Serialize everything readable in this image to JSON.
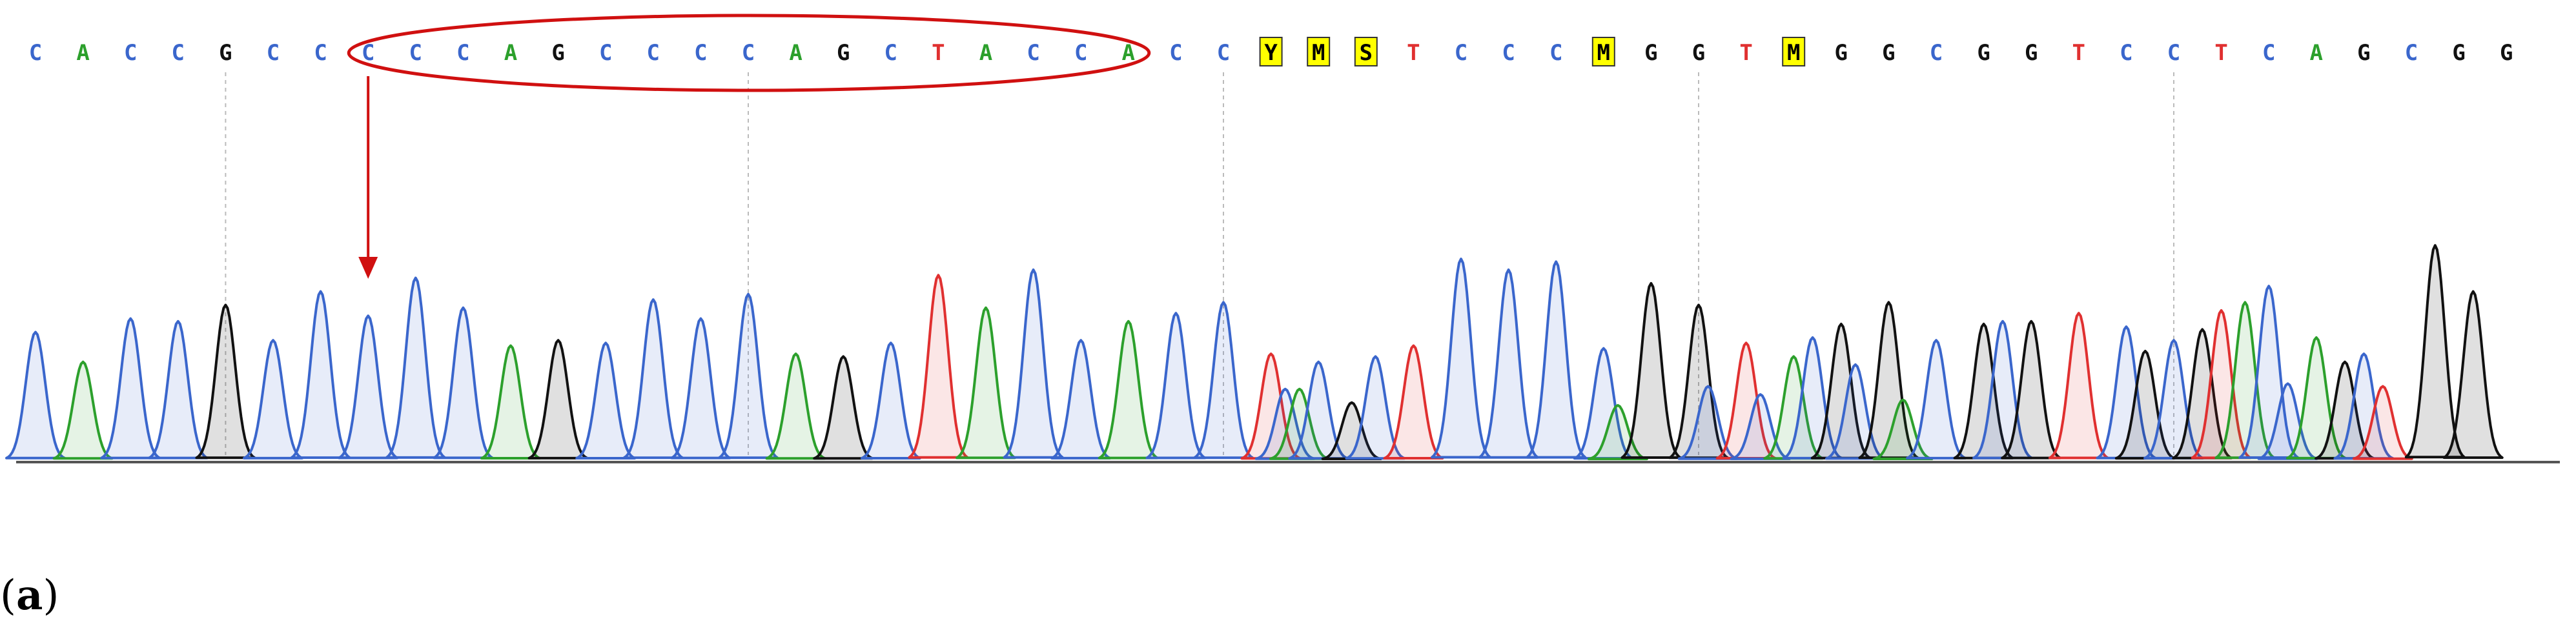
{
  "colors": {
    "A": "#2ca02c",
    "C": "#3a66cc",
    "G": "#111111",
    "T": "#e03030",
    "N": "#000000",
    "highlight": "#ffff00",
    "annotation": "#d01010",
    "fill_A": "rgba(44,160,44,0.12)",
    "fill_C": "rgba(58,102,204,0.12)",
    "fill_G": "rgba(0,0,0,0.12)",
    "fill_T": "rgba(224,48,48,0.12)"
  },
  "chart_data": {
    "type": "line",
    "subtype": "sanger-chromatogram",
    "title": "",
    "xlabel": "",
    "ylabel": "",
    "sequence": [
      "C",
      "A",
      "C",
      "C",
      "G",
      "C",
      "C",
      "C",
      "C",
      "C",
      "A",
      "G",
      "C",
      "C",
      "C",
      "C",
      "A",
      "G",
      "C",
      "T",
      "A",
      "C",
      "C",
      "A",
      "C",
      "C",
      "Y",
      "M",
      "S",
      "T",
      "C",
      "C",
      "C",
      "M",
      "G",
      "G",
      "T",
      "M",
      "G",
      "G",
      "C",
      "G",
      "G",
      "T",
      "C",
      "C",
      "T",
      "C",
      "A",
      "G",
      "C",
      "G",
      "G"
    ],
    "highlighted_bases": [
      26,
      27,
      28,
      33,
      37
    ],
    "circled_range": [
      7,
      23
    ],
    "arrow_base_index": 7,
    "guide_lines_at_base": [
      4,
      15,
      25,
      35,
      45
    ],
    "peaks": [
      {
        "base": "C",
        "x": 1,
        "h": 0.47
      },
      {
        "base": "A",
        "x": 2,
        "h": 0.36
      },
      {
        "base": "C",
        "x": 3,
        "h": 0.52
      },
      {
        "base": "C",
        "x": 4,
        "h": 0.51
      },
      {
        "base": "G",
        "x": 5,
        "h": 0.57
      },
      {
        "base": "C",
        "x": 6,
        "h": 0.44
      },
      {
        "base": "C",
        "x": 7,
        "h": 0.62
      },
      {
        "base": "C",
        "x": 8,
        "h": 0.53
      },
      {
        "base": "C",
        "x": 9,
        "h": 0.67
      },
      {
        "base": "C",
        "x": 10,
        "h": 0.56
      },
      {
        "base": "A",
        "x": 11,
        "h": 0.42
      },
      {
        "base": "G",
        "x": 12,
        "h": 0.44
      },
      {
        "base": "C",
        "x": 13,
        "h": 0.43
      },
      {
        "base": "C",
        "x": 14,
        "h": 0.59
      },
      {
        "base": "C",
        "x": 15,
        "h": 0.52
      },
      {
        "base": "C",
        "x": 16,
        "h": 0.61
      },
      {
        "base": "A",
        "x": 17,
        "h": 0.39
      },
      {
        "base": "G",
        "x": 18,
        "h": 0.38
      },
      {
        "base": "C",
        "x": 19,
        "h": 0.43
      },
      {
        "base": "T",
        "x": 20,
        "h": 0.68
      },
      {
        "base": "A",
        "x": 21,
        "h": 0.56
      },
      {
        "base": "C",
        "x": 22,
        "h": 0.7
      },
      {
        "base": "C",
        "x": 23,
        "h": 0.44
      },
      {
        "base": "A",
        "x": 24,
        "h": 0.51
      },
      {
        "base": "C",
        "x": 25,
        "h": 0.54
      },
      {
        "base": "C",
        "x": 26,
        "h": 0.58
      },
      {
        "base": "T",
        "x": 27,
        "h": 0.39
      },
      {
        "base": "C",
        "x": 27.3,
        "h": 0.26
      },
      {
        "base": "A",
        "x": 27.6,
        "h": 0.26
      },
      {
        "base": "C",
        "x": 28,
        "h": 0.36
      },
      {
        "base": "G",
        "x": 28.7,
        "h": 0.21
      },
      {
        "base": "C",
        "x": 29.2,
        "h": 0.38
      },
      {
        "base": "T",
        "x": 30,
        "h": 0.42
      },
      {
        "base": "C",
        "x": 31,
        "h": 0.74
      },
      {
        "base": "C",
        "x": 32,
        "h": 0.7
      },
      {
        "base": "C",
        "x": 33,
        "h": 0.73
      },
      {
        "base": "C",
        "x": 34,
        "h": 0.41
      },
      {
        "base": "A",
        "x": 34.3,
        "h": 0.2
      },
      {
        "base": "G",
        "x": 35,
        "h": 0.65
      },
      {
        "base": "G",
        "x": 36,
        "h": 0.57
      },
      {
        "base": "C",
        "x": 36.2,
        "h": 0.27
      },
      {
        "base": "T",
        "x": 37,
        "h": 0.43
      },
      {
        "base": "C",
        "x": 37.3,
        "h": 0.24
      },
      {
        "base": "A",
        "x": 38,
        "h": 0.38
      },
      {
        "base": "C",
        "x": 38.4,
        "h": 0.45
      },
      {
        "base": "G",
        "x": 39,
        "h": 0.5
      },
      {
        "base": "C",
        "x": 39.3,
        "h": 0.35
      },
      {
        "base": "G",
        "x": 40,
        "h": 0.58
      },
      {
        "base": "A",
        "x": 40.3,
        "h": 0.22
      },
      {
        "base": "C",
        "x": 41,
        "h": 0.44
      },
      {
        "base": "G",
        "x": 42,
        "h": 0.5
      },
      {
        "base": "C",
        "x": 42.4,
        "h": 0.51
      },
      {
        "base": "G",
        "x": 43,
        "h": 0.51
      },
      {
        "base": "T",
        "x": 44,
        "h": 0.54
      },
      {
        "base": "C",
        "x": 45,
        "h": 0.49
      },
      {
        "base": "G",
        "x": 45.4,
        "h": 0.4
      },
      {
        "base": "C",
        "x": 46,
        "h": 0.44
      },
      {
        "base": "G",
        "x": 46.6,
        "h": 0.48
      },
      {
        "base": "T",
        "x": 47,
        "h": 0.55
      },
      {
        "base": "A",
        "x": 47.5,
        "h": 0.58
      },
      {
        "base": "C",
        "x": 48,
        "h": 0.64
      },
      {
        "base": "C",
        "x": 48.4,
        "h": 0.28
      },
      {
        "base": "A",
        "x": 49,
        "h": 0.45
      },
      {
        "base": "G",
        "x": 49.6,
        "h": 0.36
      },
      {
        "base": "C",
        "x": 50,
        "h": 0.39
      },
      {
        "base": "T",
        "x": 50.4,
        "h": 0.27
      },
      {
        "base": "G",
        "x": 51.5,
        "h": 0.79
      },
      {
        "base": "G",
        "x": 52.3,
        "h": 0.62
      }
    ]
  },
  "panel_label": {
    "open": "(",
    "letter": "a",
    "close": ")"
  }
}
